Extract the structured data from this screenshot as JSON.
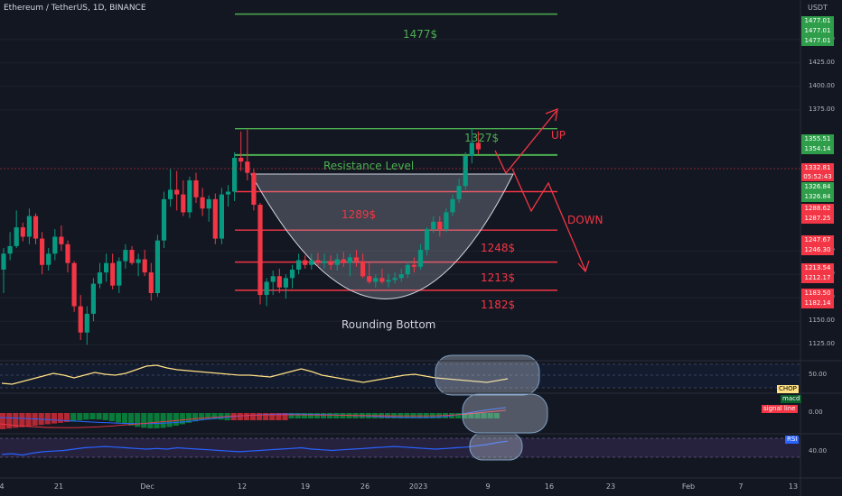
{
  "header": {
    "title": "Ethereum / TetherUS, 1D, BINANCE"
  },
  "axis": {
    "currency": "USDT",
    "price_ticks": [
      {
        "label": "1450.00",
        "v": 1450
      },
      {
        "label": "1425.00",
        "v": 1425
      },
      {
        "label": "1400.00",
        "v": 1400
      },
      {
        "label": "1375.00",
        "v": 1375
      },
      {
        "label": "1225.00",
        "v": 1225
      },
      {
        "label": "1200.00",
        "v": 1200
      },
      {
        "label": "1175.00",
        "v": 1175
      },
      {
        "label": "1150.00",
        "v": 1150
      },
      {
        "label": "1125.00",
        "v": 1125
      }
    ],
    "price_tags": [
      {
        "text": "1477.01",
        "v": 1477.01,
        "color": "#2e9e4a"
      },
      {
        "text": "1477.01",
        "v": 1477.01,
        "color": "#2e9e4a"
      },
      {
        "text": "1477.01",
        "v": 1477.01,
        "color": "#2e9e4a"
      },
      {
        "text": "1355.51",
        "v": 1355.51,
        "color": "#2e9e4a"
      },
      {
        "text": "1354.14",
        "v": 1354.14,
        "color": "#2e9e4a"
      },
      {
        "text": "1332.81",
        "text2": "05:52:43",
        "v": 1332.81,
        "color": "#f23645"
      },
      {
        "text": "1326.84",
        "v": 1326.84,
        "color": "#2e9e4a"
      },
      {
        "text": "1326.84",
        "v": 1326.84,
        "color": "#2e9e4a"
      },
      {
        "text": "1288.62",
        "v": 1288.62,
        "color": "#f23645"
      },
      {
        "text": "1287.25",
        "v": 1287.25,
        "color": "#f23645"
      },
      {
        "text": "1247.67",
        "v": 1247.67,
        "color": "#f23645"
      },
      {
        "text": "1246.30",
        "v": 1246.3,
        "color": "#f23645"
      },
      {
        "text": "1213.54",
        "v": 1213.54,
        "color": "#f23645"
      },
      {
        "text": "1212.17",
        "v": 1212.17,
        "color": "#f23645"
      },
      {
        "text": "1183.50",
        "v": 1183.5,
        "color": "#f23645"
      },
      {
        "text": "1182.14",
        "v": 1182.14,
        "color": "#f23645"
      }
    ],
    "ind_ticks": [
      {
        "label": "50.00",
        "pane": "chop"
      },
      {
        "label": "0.00",
        "pane": "macd"
      },
      {
        "label": "40.00",
        "pane": "rsi"
      }
    ],
    "x_ticks": [
      "4",
      "21",
      "Dec",
      "12",
      "19",
      "26",
      "2023",
      "9",
      "16",
      "23",
      "Feb",
      "7",
      "13"
    ]
  },
  "annotations": {
    "target_high": "1477$",
    "resistance_value": "1327$",
    "resistance_label": "Resistance Level",
    "level_1289": "1289$",
    "level_1248": "1248$",
    "level_1213": "1213$",
    "level_1182": "1182$",
    "pattern_label": "Rounding Bottom",
    "up_label": "UP",
    "down_label": "DOWN"
  },
  "indicators": {
    "chop_label": "CHOP",
    "macd_label": "macd",
    "signal_label": "signal line",
    "rsi_label": "RSI"
  },
  "colors": {
    "background": "#131722",
    "bull": "#089981",
    "bear": "#f23645",
    "resistance": "#4caf50",
    "support": "#f23645",
    "chop_line": "#ffe082",
    "rsi_line": "#2962ff"
  },
  "chart_data": {
    "type": "candlestick",
    "symbol": "ETH/USDT",
    "interval": "1D",
    "ylim": [
      1108,
      1492
    ],
    "candles": [
      [
        1205,
        1228,
        1180,
        1222
      ],
      [
        1222,
        1245,
        1215,
        1230
      ],
      [
        1230,
        1268,
        1228,
        1250
      ],
      [
        1250,
        1255,
        1235,
        1240
      ],
      [
        1240,
        1270,
        1232,
        1262
      ],
      [
        1262,
        1265,
        1232,
        1238
      ],
      [
        1238,
        1245,
        1200,
        1210
      ],
      [
        1210,
        1228,
        1204,
        1222
      ],
      [
        1222,
        1248,
        1215,
        1240
      ],
      [
        1240,
        1252,
        1225,
        1232
      ],
      [
        1232,
        1236,
        1202,
        1212
      ],
      [
        1212,
        1214,
        1160,
        1166
      ],
      [
        1166,
        1178,
        1130,
        1138
      ],
      [
        1138,
        1166,
        1125,
        1158
      ],
      [
        1158,
        1196,
        1150,
        1190
      ],
      [
        1190,
        1212,
        1185,
        1202
      ],
      [
        1202,
        1222,
        1192,
        1212
      ],
      [
        1212,
        1222,
        1184,
        1188
      ],
      [
        1188,
        1218,
        1180,
        1214
      ],
      [
        1214,
        1232,
        1206,
        1226
      ],
      [
        1226,
        1230,
        1210,
        1212
      ],
      [
        1212,
        1222,
        1198,
        1216
      ],
      [
        1216,
        1226,
        1198,
        1202
      ],
      [
        1202,
        1212,
        1172,
        1180
      ],
      [
        1180,
        1242,
        1176,
        1236
      ],
      [
        1236,
        1288,
        1228,
        1280
      ],
      [
        1280,
        1312,
        1272,
        1290
      ],
      [
        1290,
        1310,
        1268,
        1285
      ],
      [
        1285,
        1300,
        1262,
        1266
      ],
      [
        1266,
        1304,
        1260,
        1300
      ],
      [
        1300,
        1308,
        1276,
        1282
      ],
      [
        1282,
        1292,
        1262,
        1270
      ],
      [
        1270,
        1284,
        1256,
        1280
      ],
      [
        1280,
        1286,
        1232,
        1238
      ],
      [
        1238,
        1292,
        1232,
        1285
      ],
      [
        1285,
        1295,
        1272,
        1288
      ],
      [
        1288,
        1330,
        1278,
        1324
      ],
      [
        1324,
        1352,
        1310,
        1320
      ],
      [
        1320,
        1354,
        1300,
        1308
      ],
      [
        1308,
        1312,
        1268,
        1274
      ],
      [
        1274,
        1276,
        1168,
        1178
      ],
      [
        1178,
        1196,
        1166,
        1192
      ],
      [
        1192,
        1204,
        1178,
        1198
      ],
      [
        1198,
        1206,
        1180,
        1186
      ],
      [
        1186,
        1200,
        1174,
        1196
      ],
      [
        1196,
        1210,
        1185,
        1205
      ],
      [
        1205,
        1222,
        1200,
        1215
      ],
      [
        1215,
        1220,
        1206,
        1210
      ],
      [
        1210,
        1222,
        1205,
        1215
      ],
      [
        1215,
        1223,
        1208,
        1212
      ],
      [
        1212,
        1222,
        1206,
        1214
      ],
      [
        1214,
        1220,
        1205,
        1210
      ],
      [
        1210,
        1222,
        1204,
        1216
      ],
      [
        1216,
        1224,
        1208,
        1212
      ],
      [
        1212,
        1222,
        1198,
        1218
      ],
      [
        1218,
        1226,
        1208,
        1214
      ],
      [
        1214,
        1222,
        1196,
        1198
      ],
      [
        1198,
        1212,
        1190,
        1192
      ],
      [
        1192,
        1200,
        1186,
        1196
      ],
      [
        1196,
        1206,
        1190,
        1192
      ],
      [
        1192,
        1200,
        1186,
        1194
      ],
      [
        1194,
        1202,
        1190,
        1196
      ],
      [
        1196,
        1206,
        1192,
        1200
      ],
      [
        1200,
        1214,
        1196,
        1210
      ],
      [
        1210,
        1218,
        1202,
        1208
      ],
      [
        1208,
        1232,
        1205,
        1226
      ],
      [
        1226,
        1250,
        1220,
        1248
      ],
      [
        1248,
        1262,
        1244,
        1256
      ],
      [
        1256,
        1262,
        1240,
        1248
      ],
      [
        1248,
        1270,
        1245,
        1266
      ],
      [
        1266,
        1285,
        1262,
        1280
      ],
      [
        1280,
        1302,
        1276,
        1294
      ],
      [
        1294,
        1330,
        1290,
        1326
      ],
      [
        1326,
        1355,
        1318,
        1340
      ],
      [
        1340,
        1352,
        1328,
        1333
      ]
    ],
    "levels": [
      {
        "label": "1477$",
        "value": 1477
      },
      {
        "label": "1327$",
        "value": 1355
      },
      {
        "label": "Resistance Level",
        "value": 1327
      },
      {
        "label": "1289$",
        "value": 1288
      },
      {
        "label": "1248$",
        "value": 1247
      },
      {
        "label": "1213$",
        "value": 1213
      },
      {
        "label": "1182$",
        "value": 1183
      }
    ],
    "chop_values": [
      47,
      46,
      49,
      52,
      55,
      58,
      56,
      53,
      56,
      59,
      57,
      56,
      58,
      62,
      66,
      67,
      64,
      62,
      61,
      60,
      59,
      58,
      57,
      56,
      56,
      55,
      54,
      57,
      60,
      63,
      60,
      56,
      54,
      52,
      50,
      48,
      50,
      52,
      54,
      56,
      57,
      55,
      53,
      52,
      51,
      50,
      49,
      48,
      50,
      52
    ],
    "rsi_values": [
      42,
      43,
      41,
      44,
      46,
      47,
      48,
      50,
      52,
      53,
      54,
      53,
      52,
      51,
      50,
      51,
      50,
      52,
      51,
      50,
      49,
      48,
      47,
      46,
      47,
      48,
      49,
      50,
      51,
      52,
      50,
      49,
      48,
      49,
      50,
      51,
      52,
      53,
      54,
      53,
      52,
      51,
      50,
      51,
      52,
      53,
      55,
      57,
      60,
      62
    ],
    "xlabels": [
      "4",
      "21",
      "Dec",
      "12",
      "19",
      "26",
      "2023",
      "9",
      "16",
      "23",
      "Feb",
      "7",
      "13"
    ]
  }
}
